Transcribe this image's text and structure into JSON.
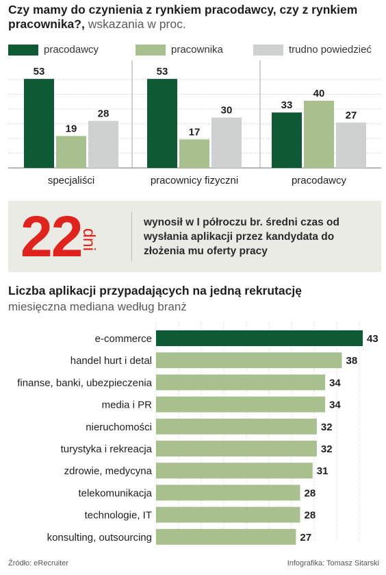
{
  "chart1": {
    "title": "Czy mamy do czynienia z rynkiem pracodawcy, czy z rynkiem pracownika?,",
    "subtitle": "wskazania w proc.",
    "chart_data": {
      "type": "bar",
      "categories": [
        "specjaliści",
        "pracownicy fizyczni",
        "pracodawcy"
      ],
      "series": [
        {
          "name": "pracodawcy",
          "values": [
            53,
            53,
            33
          ],
          "color": "#0e5a34"
        },
        {
          "name": "pracownika",
          "values": [
            19,
            17,
            40
          ],
          "color": "#a7c08d"
        },
        {
          "name": "trudno powiedzieć",
          "values": [
            28,
            30,
            27
          ],
          "color": "#cfd1d1"
        }
      ],
      "ylim": [
        0,
        60
      ],
      "grid": true,
      "legend": "top"
    }
  },
  "stat": {
    "number": "22",
    "unit": "dni",
    "text": "wynosił w I półroczu br. średni czas od wysłania aplikacji przez kandydata do złożenia mu oferty pracy"
  },
  "chart2": {
    "title": "Liczba aplikacji przypadających na jedną rekrutację",
    "subtitle": "miesięczna mediana według branż",
    "chart_data": {
      "type": "bar",
      "orientation": "horizontal",
      "categories": [
        "e-commerce",
        "handel hurt i detal",
        "finanse, banki, ubezpieczenia",
        "media i PR",
        "nieruchomości",
        "turystyka i rekreacja",
        "zdrowie, medycyna",
        "telekomunikacja",
        "technologie, IT",
        "konsulting, outsourcing"
      ],
      "values": [
        43,
        38,
        34,
        34,
        32,
        32,
        31,
        28,
        28,
        27
      ],
      "highlight_color": "#0e5a34",
      "bar_color": "#a7c08d",
      "grid": true
    }
  },
  "footer": {
    "source": "Źródło: eRecruiter",
    "credit": "Infografika: Tomasz Sitarski"
  }
}
